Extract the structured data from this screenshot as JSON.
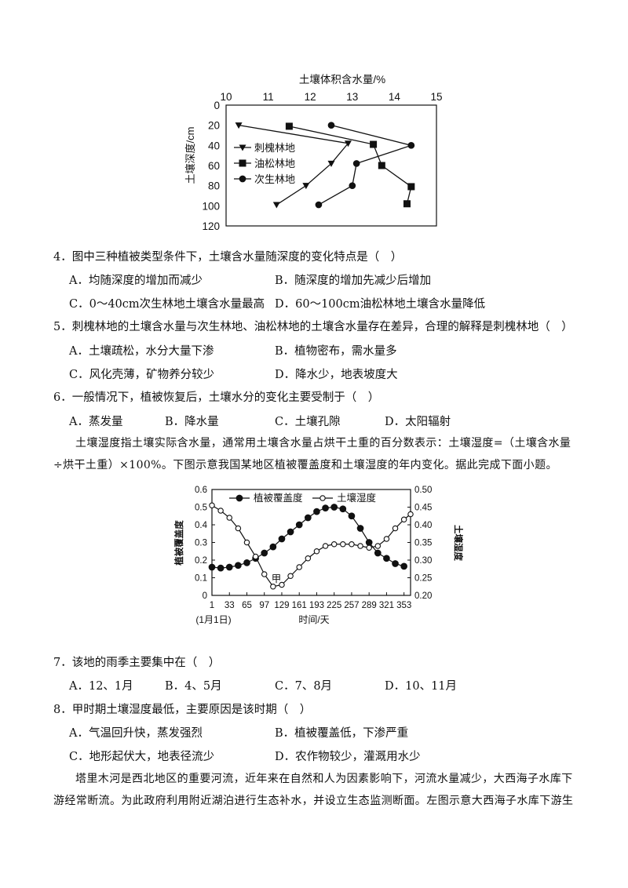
{
  "chart1": {
    "type": "line",
    "title": "土壤体积含水量/%",
    "ylabel": "土壤深度/cm",
    "x_ticks": [
      "10",
      "11",
      "12",
      "13",
      "14",
      "15"
    ],
    "y_ticks": [
      "0",
      "20",
      "40",
      "60",
      "80",
      "100",
      "120"
    ],
    "xlim": [
      10,
      15
    ],
    "ylim": [
      0,
      120
    ],
    "legend": [
      "刺槐林地",
      "油松林地",
      "次生林地"
    ],
    "series": [
      {
        "name": "刺槐林地",
        "marker": "triangle",
        "points": [
          [
            10.3,
            20
          ],
          [
            12.9,
            38
          ],
          [
            12.5,
            58
          ],
          [
            11.9,
            80
          ],
          [
            11.2,
            99
          ]
        ]
      },
      {
        "name": "油松林地",
        "marker": "square",
        "points": [
          [
            11.5,
            21
          ],
          [
            13.5,
            39
          ],
          [
            13.7,
            60
          ],
          [
            14.4,
            81
          ],
          [
            14.3,
            98
          ]
        ]
      },
      {
        "name": "次生林地",
        "marker": "circle",
        "points": [
          [
            12.5,
            20
          ],
          [
            14.4,
            40
          ],
          [
            13.1,
            58
          ],
          [
            13.0,
            80
          ],
          [
            12.2,
            99
          ]
        ]
      }
    ]
  },
  "chart2": {
    "type": "line",
    "legend": [
      "植被覆盖度",
      "土壤湿度"
    ],
    "ylabel_left": "植被覆盖度",
    "ylabel_right": "土壤湿度",
    "xlabel": "时间/天",
    "x_sub": "(1月1日)",
    "x_ticks": [
      "1",
      "33",
      "65",
      "97",
      "129",
      "161",
      "193",
      "225",
      "257",
      "289",
      "321",
      "353"
    ],
    "yl_ticks": [
      "0",
      "0.1",
      "0.2",
      "0.3",
      "0.4",
      "0.5",
      "0.6"
    ],
    "yr_ticks": [
      "0.20",
      "0.25",
      "0.30",
      "0.35",
      "0.40",
      "0.45",
      "0.50"
    ],
    "annotation": "甲",
    "xlim": [
      1,
      365
    ],
    "ylim_left": [
      0,
      0.6
    ],
    "ylim_right": [
      0.2,
      0.5
    ],
    "veg_x": [
      1,
      17,
      33,
      49,
      65,
      81,
      97,
      113,
      129,
      145,
      161,
      177,
      193,
      209,
      225,
      241,
      257,
      273,
      289,
      305,
      321,
      337,
      353
    ],
    "veg_values": [
      0.16,
      0.155,
      0.16,
      0.17,
      0.185,
      0.21,
      0.24,
      0.275,
      0.32,
      0.36,
      0.4,
      0.44,
      0.475,
      0.495,
      0.5,
      0.49,
      0.45,
      0.38,
      0.3,
      0.24,
      0.21,
      0.18,
      0.165
    ],
    "soil_x": [
      1,
      17,
      33,
      49,
      65,
      81,
      97,
      113,
      129,
      145,
      161,
      177,
      193,
      209,
      225,
      241,
      257,
      273,
      289,
      305,
      321,
      337,
      353,
      365
    ],
    "soil_values": [
      0.455,
      0.44,
      0.42,
      0.39,
      0.35,
      0.31,
      0.26,
      0.225,
      0.23,
      0.255,
      0.28,
      0.305,
      0.325,
      0.34,
      0.345,
      0.345,
      0.345,
      0.34,
      0.335,
      0.34,
      0.36,
      0.39,
      0.415,
      0.43
    ]
  },
  "q4": {
    "stem": "4．图中三种植被类型条件下，土壤含水量随深度的变化特点是（　）",
    "a": "A．均随深度的增加而减少",
    "b": "B．随深度的增加先减少后增加",
    "c": "C．0～40cm次生林地土壤含水量最高",
    "d": "D．60～100cm油松林地土壤含水量降低"
  },
  "q5": {
    "stem": "5．刺槐林地的土壤含水量与次生林地、油松林地的土壤含水量存在差异，合理的解释是刺槐林地（　）",
    "a": "A．土壤疏松，水分大量下渗",
    "b": "B．植物密布，需水量多",
    "c": "C．风化壳薄，矿物养分较少",
    "d": "D．降水少，地表坡度大"
  },
  "q6": {
    "stem": "6．一般情况下，植被恢复后，土壤水分的变化主要受制于（　）",
    "a": "A．蒸发量",
    "b": "B．降水量",
    "c": "C．土壤孔隙",
    "d": "D．太阳辐射"
  },
  "para1": "土壤湿度指土壤实际含水量，通常用土壤含水量占烘干土重的百分数表示：土壤湿度=（土壤含水量÷烘干土重）×100%。下图示意我国某地区植被覆盖度和土壤湿度的年内变化。据此完成下面小题。",
  "q7": {
    "stem": "7．该地的雨季主要集中在（　）",
    "a": "A．12、1月",
    "b": "B．4、5月",
    "c": "C．7、8月",
    "d": "D．10、11月"
  },
  "q8": {
    "stem": "8．甲时期土壤湿度最低，主要原因是该时期（　）",
    "a": "A．气温回升快，蒸发强烈",
    "b": "B．植被覆盖低，下渗严重",
    "c": "C．地形起伏大，地表径流少",
    "d": "D．农作物较少，灌溉用水少"
  },
  "para2": "塔里木河是西北地区的重要河流，近年来在自然和人为因素影响下，河流水量减少，大西海子水库下游经常断流。为此政府利用附近湖泊进行生态补水，并设立生态监测断面。左图示意大西海子水库下游生"
}
